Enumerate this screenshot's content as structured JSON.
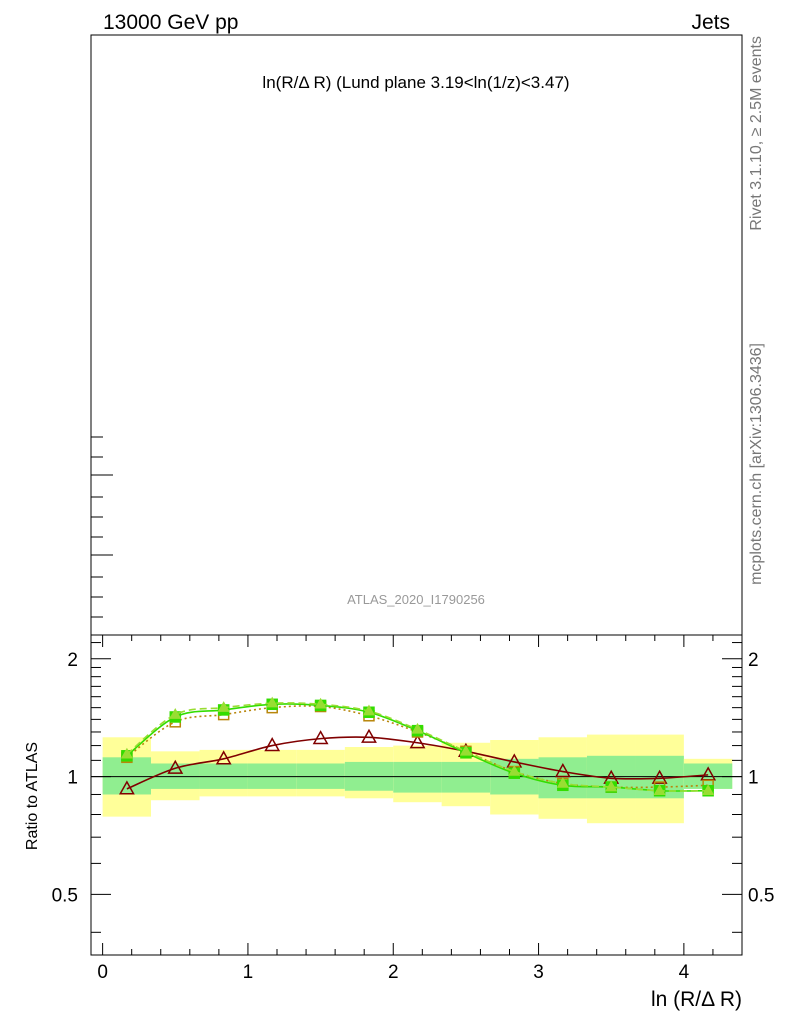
{
  "header": {
    "left": "13000 GeV pp",
    "right": "Jets"
  },
  "plot_title": "ln(R/Δ R) (Lund plane 3.19<ln(1/z)<3.47)",
  "watermark": "ATLAS_2020_I1790256",
  "side_labels": {
    "rivet": "Rivet 3.1.10, ≥ 2.5M events",
    "mcplots": "mcplots.cern.ch [arXiv:1306.3436]"
  },
  "colors": {
    "band_inner": "#90ee90",
    "band_outer": "#ffff99",
    "reference_line": "#000000",
    "series_dark_red": "#800000",
    "series_brown": "#b8860b",
    "series_green": "#33dd00",
    "series_light_green": "#99dd33"
  },
  "chart_data": {
    "type": "line",
    "xlabel": "ln (R/Δ R)",
    "ylabel": "Ratio to ATLAS",
    "xlim": [
      -0.08,
      4.4
    ],
    "ylim": [
      0.35,
      2.3
    ],
    "yscale": "log",
    "x_ticks": [
      0,
      1,
      2,
      3,
      4
    ],
    "y_ticks": [
      0.5,
      1,
      2
    ],
    "x": [
      0.167,
      0.5,
      0.833,
      1.167,
      1.5,
      1.833,
      2.167,
      2.5,
      2.833,
      3.167,
      3.5,
      3.833,
      4.167
    ],
    "bin_edges": [
      0.0,
      0.333,
      0.667,
      1.0,
      1.333,
      1.667,
      2.0,
      2.333,
      2.667,
      3.0,
      3.333,
      3.667,
      4.0,
      4.333
    ],
    "band_inner": {
      "lo": [
        0.9,
        0.93,
        0.93,
        0.93,
        0.93,
        0.92,
        0.91,
        0.91,
        0.9,
        0.88,
        0.88,
        0.88,
        0.93
      ],
      "hi": [
        1.12,
        1.08,
        1.08,
        1.08,
        1.08,
        1.09,
        1.09,
        1.09,
        1.11,
        1.12,
        1.13,
        1.13,
        1.08
      ]
    },
    "band_outer": {
      "lo": [
        0.79,
        0.87,
        0.89,
        0.89,
        0.89,
        0.88,
        0.86,
        0.84,
        0.8,
        0.78,
        0.76,
        0.76,
        0.93
      ],
      "hi": [
        1.26,
        1.16,
        1.17,
        1.17,
        1.17,
        1.19,
        1.2,
        1.22,
        1.24,
        1.26,
        1.28,
        1.28,
        1.11
      ]
    },
    "series": [
      {
        "color": "#800000",
        "dash": "",
        "marker": "triangle",
        "values": [
          0.93,
          1.05,
          1.11,
          1.2,
          1.25,
          1.26,
          1.22,
          1.16,
          1.09,
          1.03,
          0.99,
          0.99,
          1.01
        ]
      },
      {
        "color": "#b8860b",
        "dash": "2,3",
        "marker": "square",
        "values": [
          1.12,
          1.38,
          1.44,
          1.5,
          1.51,
          1.43,
          1.3,
          1.16,
          1.03,
          0.96,
          0.94,
          0.94,
          0.95
        ]
      },
      {
        "color": "#33dd00",
        "dash": "",
        "marker": "square-filled",
        "values": [
          1.13,
          1.42,
          1.48,
          1.53,
          1.52,
          1.46,
          1.31,
          1.15,
          1.02,
          0.95,
          0.94,
          0.92,
          0.92
        ]
      },
      {
        "color": "#99dd33",
        "dash": "7,4",
        "marker": "triangle-filled",
        "values": [
          1.14,
          1.44,
          1.5,
          1.54,
          1.53,
          1.47,
          1.32,
          1.16,
          1.03,
          0.96,
          0.94,
          0.92,
          0.92
        ]
      }
    ]
  }
}
